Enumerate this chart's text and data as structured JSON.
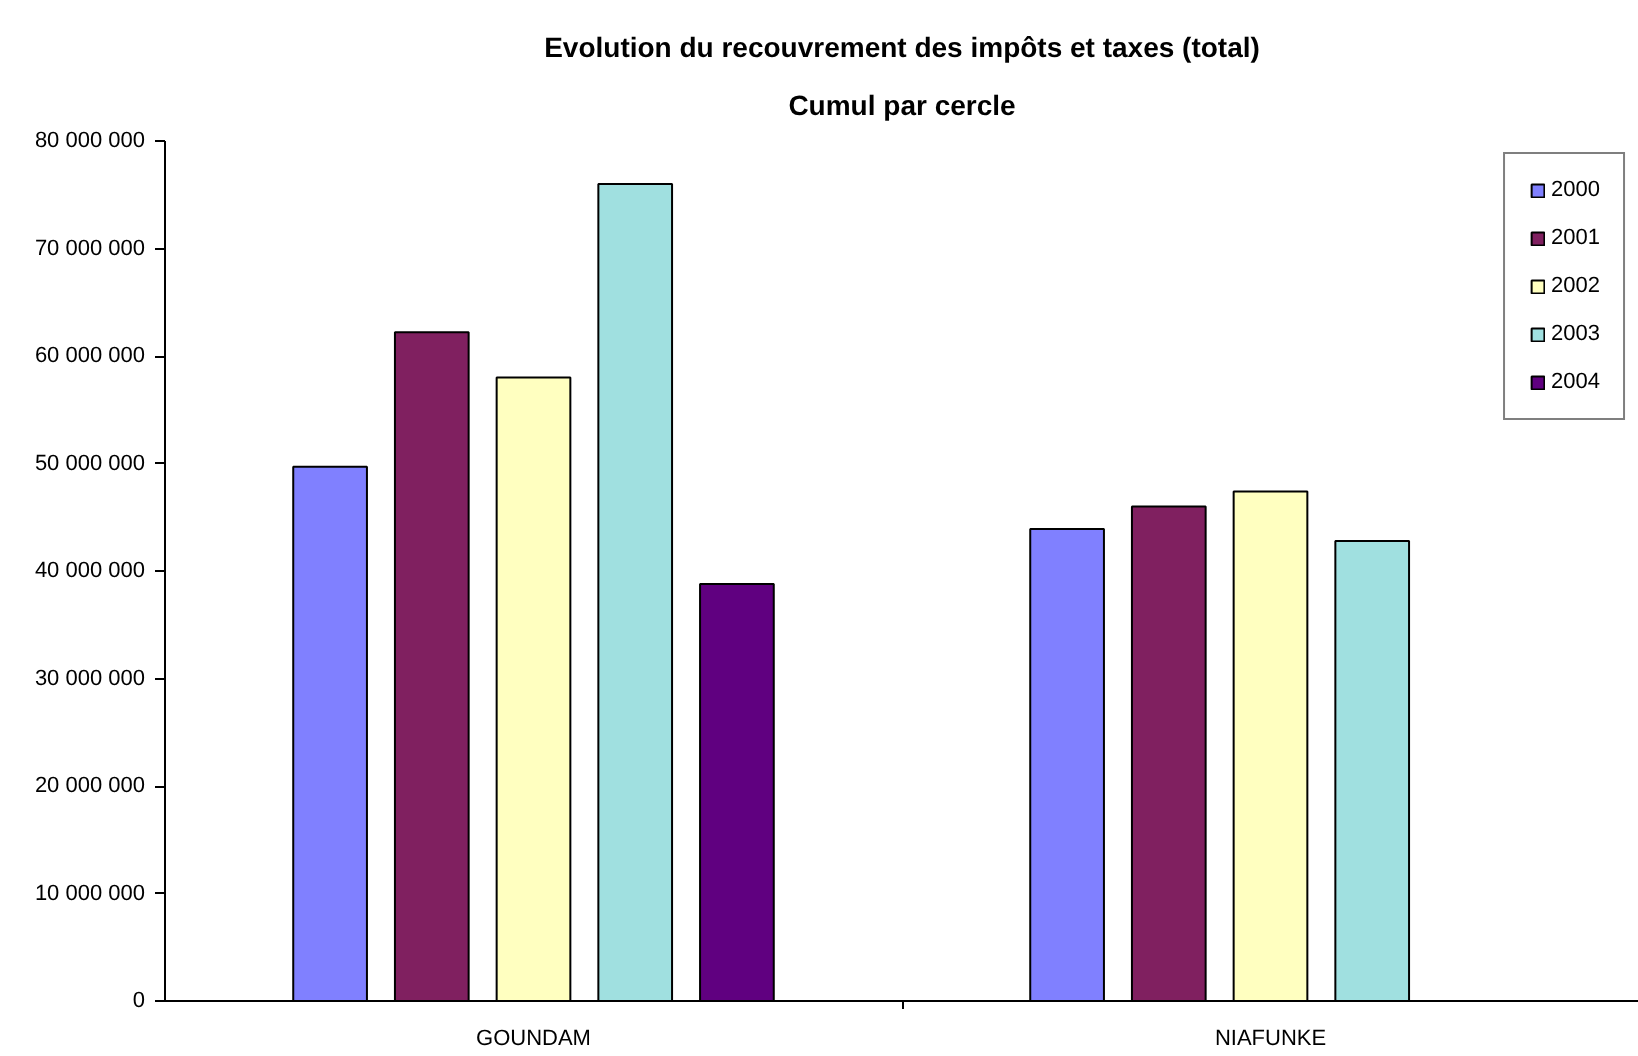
{
  "chart_data": {
    "type": "bar",
    "title": "Evolution du recouvrement des impôts et taxes (total)",
    "subtitle": "Cumul par cercle",
    "categories": [
      "GOUNDAM",
      "NIAFUNKE"
    ],
    "series": [
      {
        "name": "2000",
        "color": "#8080ff",
        "values": [
          49700000,
          43900000
        ]
      },
      {
        "name": "2001",
        "color": "#802060",
        "values": [
          62200000,
          46000000
        ]
      },
      {
        "name": "2002",
        "color": "#ffffc0",
        "values": [
          58000000,
          47400000
        ]
      },
      {
        "name": "2003",
        "color": "#a0e0e0",
        "values": [
          76000000,
          42800000
        ]
      },
      {
        "name": "2004",
        "color": "#600080",
        "values": [
          38800000,
          null
        ]
      }
    ],
    "ylim": [
      0,
      80000000
    ],
    "yticks": [
      0,
      {
        "value": 10000000,
        "label": "10 000 000"
      },
      {
        "value": 20000000,
        "label": "20 000 000"
      },
      {
        "value": 30000000,
        "label": "30 000 000"
      },
      {
        "value": 40000000,
        "label": "40 000 000"
      },
      {
        "value": 50000000,
        "label": "50 000 000"
      },
      {
        "value": 60000000,
        "label": "60 000 000"
      },
      {
        "value": 70000000,
        "label": "70 000 000"
      },
      {
        "value": 80000000,
        "label": "80 000 000"
      }
    ],
    "grid": false,
    "legend": "top right"
  }
}
